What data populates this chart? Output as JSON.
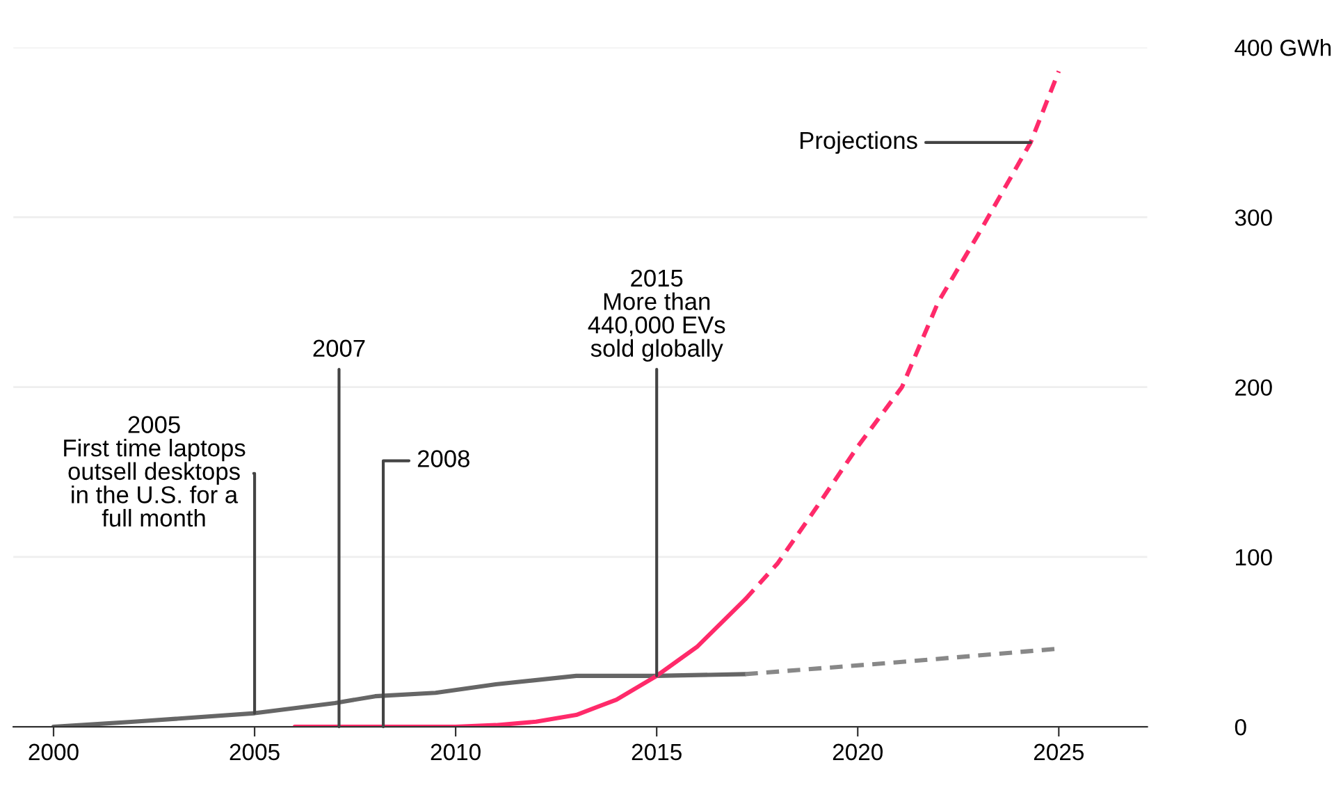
{
  "chart_data": {
    "type": "line",
    "series": [
      {
        "color": "#666666",
        "line_style": "solid",
        "x": [
          2000,
          2002,
          2005,
          2007,
          2008,
          2009.5,
          2011,
          2013,
          2015,
          2017.2
        ],
        "values": [
          0,
          3,
          8,
          14,
          18,
          20,
          25,
          30,
          30,
          31
        ]
      },
      {
        "color": "#888888",
        "line_style": "dashed",
        "x": [
          2017.2,
          2021,
          2025
        ],
        "values": [
          31,
          38,
          46
        ]
      },
      {
        "color": "#ff2a6a",
        "line_style": "solid",
        "x": [
          2006,
          2008,
          2010,
          2011,
          2012,
          2013,
          2014,
          2015,
          2016,
          2017.2
        ],
        "values": [
          0,
          0,
          0,
          1,
          3,
          7,
          16,
          30,
          47,
          75
        ]
      },
      {
        "color": "#ff2a6a",
        "line_style": "dashed",
        "x": [
          2017.2,
          2018,
          2019,
          2020,
          2021.1,
          2022,
          2023,
          2024.3,
          2025
        ],
        "values": [
          75,
          96,
          130,
          165,
          200,
          250,
          290,
          344,
          386
        ]
      }
    ],
    "xlim": [
      1999,
      2027.2
    ],
    "xticks": [
      2000,
      2005,
      2010,
      2015,
      2020,
      2025
    ],
    "ylim": [
      0,
      400
    ],
    "yticks": [
      0,
      100,
      200,
      300,
      {
        "value": 400,
        "label": "400 GWh"
      }
    ],
    "grid": "y",
    "annotations": [
      {
        "text": "2005\nFirst time laptops\noutsell desktops\nin the U.S. for a\nfull month",
        "x": 2005,
        "y": 8
      },
      {
        "text": "2007",
        "x": 2007.1,
        "y": 0
      },
      {
        "text": "2008",
        "x": 2008.2,
        "y": 0
      },
      {
        "text": "2015\nMore than\n440,000 EVs\nsold globally",
        "x": 2015,
        "y": 30
      },
      {
        "text": "Projections",
        "x": 2024.3,
        "y": 344
      }
    ]
  }
}
